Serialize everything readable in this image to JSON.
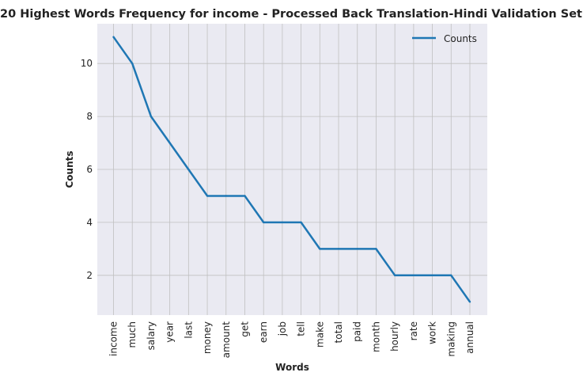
{
  "chart_data": {
    "type": "line",
    "title": "20 Highest Words Frequency for income - Processed Back Translation-Hindi Validation Set",
    "xlabel": "Words",
    "ylabel": "Counts",
    "categories": [
      "income",
      "much",
      "salary",
      "year",
      "last",
      "money",
      "amount",
      "get",
      "earn",
      "job",
      "tell",
      "make",
      "total",
      "paid",
      "month",
      "hourly",
      "rate",
      "work",
      "making",
      "annual"
    ],
    "series": [
      {
        "name": "Counts",
        "values": [
          11,
          10,
          8,
          7,
          6,
          5,
          5,
          5,
          4,
          4,
          4,
          3,
          3,
          3,
          3,
          2,
          2,
          2,
          2,
          1
        ]
      }
    ],
    "ylim": [
      0.5,
      11.5
    ],
    "yticks": [
      2,
      4,
      6,
      8,
      10
    ],
    "grid": true,
    "legend_position": "top-right",
    "colors": {
      "line": "#1f77b4",
      "background": "#eaeaf2",
      "grid": "#c0c0c0"
    }
  }
}
